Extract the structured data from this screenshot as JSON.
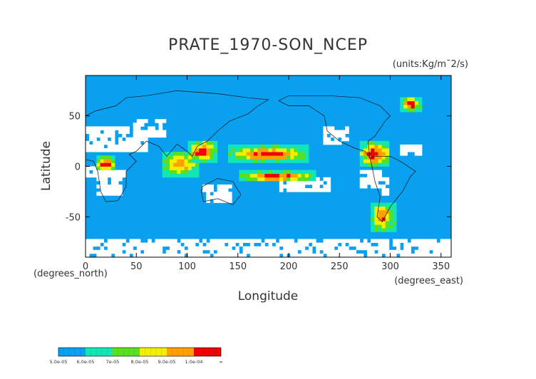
{
  "chart_data": {
    "type": "heatmap",
    "title": "PRATE_1970-SON_NCEP",
    "units": "(units:Kg/m¯2/s)",
    "xlabel": "Longitude",
    "ylabel": "Latitude",
    "x_unit_label": "(degrees_east)",
    "y_unit_label": "(degrees_north)",
    "xlim": [
      0,
      360
    ],
    "ylim": [
      -90,
      90
    ],
    "x_ticks": [
      "0",
      "50",
      "100",
      "150",
      "200",
      "250",
      "300",
      "350"
    ],
    "y_ticks": [
      "50",
      "0",
      "-50"
    ],
    "x_tick_values": [
      0,
      50,
      100,
      150,
      200,
      250,
      300,
      350
    ],
    "y_tick_values": [
      50,
      0,
      -50
    ],
    "background_level_color": "#0aa0f0",
    "dry_color": "#ffffff",
    "legend": {
      "labels": [
        "5.0e-05",
        "6.0e-05",
        "7e-05",
        "8.0e-05",
        "9.0e-05",
        "1.0e-04",
        "∞"
      ],
      "colors": [
        "#0aa0f0",
        "#12e6b4",
        "#5ae01e",
        "#f0f000",
        "#ffa000",
        "#f00000"
      ]
    },
    "regions": [
      {
        "lon": [
          100,
          130
        ],
        "lat": [
          5,
          25
        ],
        "level": 5
      },
      {
        "lon": [
          140,
          220
        ],
        "lat": [
          5,
          20
        ],
        "level": 5
      },
      {
        "lon": [
          150,
          225
        ],
        "lat": [
          -15,
          -5
        ],
        "level": 5
      },
      {
        "lon": [
          75,
          110
        ],
        "lat": [
          -10,
          15
        ],
        "level": 4
      },
      {
        "lon": [
          270,
          300
        ],
        "lat": [
          0,
          25
        ],
        "level": 5
      },
      {
        "lon": [
          10,
          30
        ],
        "lat": [
          -5,
          10
        ],
        "level": 5
      },
      {
        "lon": [
          280,
          305
        ],
        "lat": [
          -65,
          -35
        ],
        "level": 4
      },
      {
        "lon": [
          310,
          330
        ],
        "lat": [
          55,
          68
        ],
        "level": 5
      }
    ]
  }
}
